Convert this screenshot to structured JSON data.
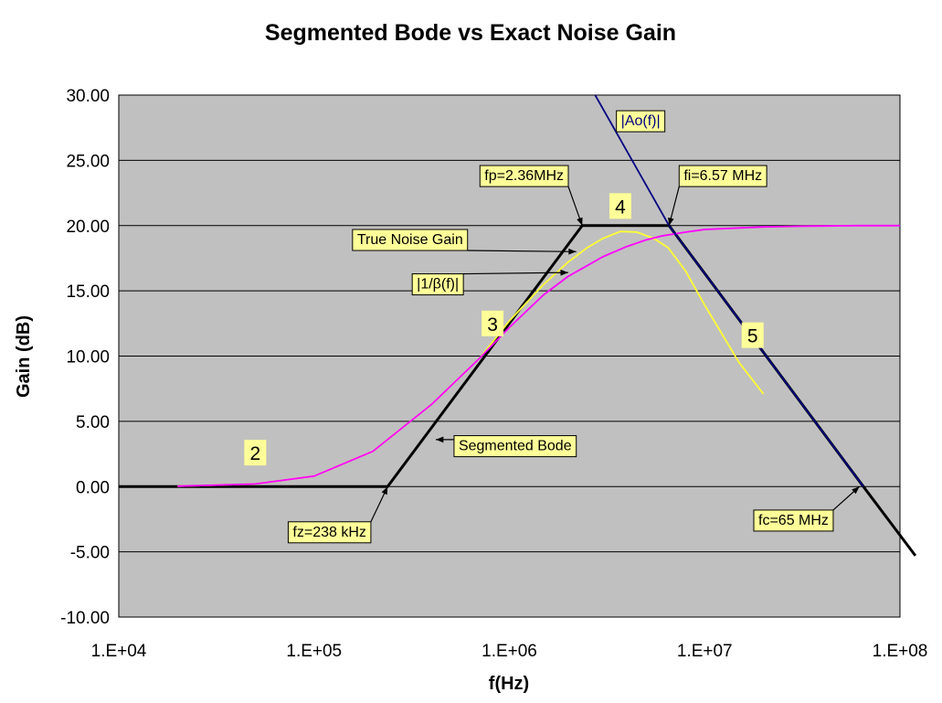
{
  "chart_data": {
    "type": "line",
    "title": "Segmented Bode vs Exact Noise Gain",
    "xlabel": "f(Hz)",
    "ylabel": "Gain (dB)",
    "x_scale": "log",
    "xlim": [
      10000,
      100000000
    ],
    "ylim": [
      -10,
      30
    ],
    "x_tick_labels": [
      "1.E+04",
      "1.E+05",
      "1.E+06",
      "1.E+07",
      "1.E+08"
    ],
    "x_tick_values": [
      10000,
      100000,
      1000000,
      10000000,
      100000000
    ],
    "y_tick_labels": [
      "-10.00",
      "-5.00",
      "0.00",
      "5.00",
      "10.00",
      "15.00",
      "20.00",
      "25.00",
      "30.00"
    ],
    "y_tick_values": [
      -10,
      -5,
      0,
      5,
      10,
      15,
      20,
      25,
      30
    ],
    "grid": "horizontal",
    "plot_background": "#C0C0C0",
    "series": [
      {
        "name": "Segmented Bode",
        "color": "#000000",
        "x": [
          10000,
          238000,
          2360000,
          6570000,
          65000000,
          120000000
        ],
        "y": [
          0,
          0,
          20,
          20,
          0,
          -5.3
        ]
      },
      {
        "name": "True Noise Gain",
        "color": "#FFFF33",
        "x": [
          20000,
          50000,
          100000,
          200000,
          400000,
          700000,
          1000000,
          1500000,
          2000000,
          2500000,
          3000000,
          3700000,
          4500000,
          5500000,
          6500000,
          8000000,
          10000000,
          15000000,
          20000000
        ],
        "y": [
          0.03,
          0.2,
          0.8,
          2.7,
          6.3,
          9.8,
          12.7,
          15.5,
          17.2,
          18.3,
          19.0,
          19.55,
          19.5,
          19.0,
          18.3,
          16.5,
          13.9,
          9.5,
          7.1
        ]
      },
      {
        "name": "|1/β(f)|",
        "color": "#FF00FF",
        "x": [
          20000,
          50000,
          100000,
          200000,
          400000,
          700000,
          1000000,
          1500000,
          2000000,
          3000000,
          4000000,
          5000000,
          6000000,
          8000000,
          10000000,
          20000000,
          30000000,
          60000000,
          100000000
        ],
        "y": [
          0.03,
          0.2,
          0.8,
          2.7,
          6.3,
          9.8,
          12.2,
          14.7,
          16.1,
          17.6,
          18.4,
          18.9,
          19.2,
          19.5,
          19.7,
          19.9,
          19.95,
          20.0,
          20.0
        ]
      },
      {
        "name": "|Ao(f)|",
        "color": "#000080",
        "x": [
          2750000,
          6570000,
          65000000
        ],
        "y": [
          30,
          20,
          0
        ]
      }
    ],
    "annotations": [
      {
        "text": "|Ao(f)|",
        "style": "label",
        "x": 4700000,
        "y": 28.1,
        "color": "#000080"
      },
      {
        "text": "fp=2.36MHz",
        "style": "callout",
        "x": 1190000,
        "y": 23.9,
        "arrow_to": [
          2360000,
          20
        ]
      },
      {
        "text": "fi=6.57 MHz",
        "style": "callout",
        "x": 12400000,
        "y": 23.9,
        "arrow_to": [
          6570000,
          20
        ]
      },
      {
        "text": "True Noise Gain",
        "style": "callout",
        "x": 310000,
        "y": 19.0,
        "arrow_to": [
          2200000,
          18.0
        ]
      },
      {
        "text": "|1/β(f)|",
        "style": "callout",
        "x": 430000,
        "y": 15.6,
        "arrow_to": [
          2000000,
          16.4
        ]
      },
      {
        "text": "Segmented Bode",
        "style": "callout",
        "x": 1070000,
        "y": 3.2,
        "arrow_to": [
          420000,
          3.6
        ]
      },
      {
        "text": "fz=238 kHz",
        "style": "callout",
        "x": 120000,
        "y": -3.4,
        "arrow_to": [
          238000,
          0
        ]
      },
      {
        "text": "fc=65 MHz",
        "style": "callout",
        "x": 28500000,
        "y": -2.5,
        "arrow_to": [
          62000000,
          0
        ]
      },
      {
        "text": "2",
        "style": "region",
        "x": 50000,
        "y": 2.6
      },
      {
        "text": "3",
        "style": "region",
        "x": 820000,
        "y": 12.5
      },
      {
        "text": "4",
        "style": "region",
        "x": 3700000,
        "y": 21.5
      },
      {
        "text": "5",
        "style": "region",
        "x": 17600000,
        "y": 11.6
      }
    ],
    "annotation_box_color": "#FFFF99"
  }
}
